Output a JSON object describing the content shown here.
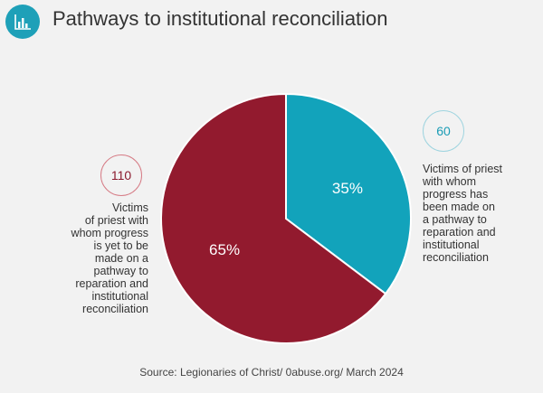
{
  "header": {
    "title": "Pathways to institutional reconciliation",
    "icon": "bar-chart-icon",
    "icon_color": "#1ea0b8"
  },
  "chart_data": {
    "type": "pie",
    "title": "Pathways to institutional reconciliation",
    "slices": [
      {
        "label": "Victims of priest with whom progress has been made on a pathway to reparation and institutional reconciliation",
        "value": 60,
        "percent": "35%",
        "color": "#12a3bb"
      },
      {
        "label": "Victims of priest with whom progress is yet to be made on a pathway to reparation and institutional reconciliation",
        "value": 110,
        "percent": "65%",
        "color": "#921a2e"
      }
    ],
    "legend": "callouts-left-right"
  },
  "annotations": {
    "left_count": "110",
    "left_lines": [
      "Victims",
      "of priest with",
      "whom progress",
      "is yet to be",
      "made on a",
      "pathway to",
      "reparation and",
      "institutional",
      "reconciliation"
    ],
    "right_count": "60",
    "right_lines": [
      "Victims of priest",
      "with whom",
      "progress has",
      "been made on",
      "a pathway to",
      "reparation and",
      "institutional",
      "reconciliation"
    ]
  },
  "source": "Source: Legionaries of Christ/ 0abuse.org/ March 2024"
}
